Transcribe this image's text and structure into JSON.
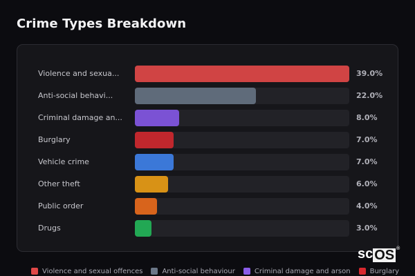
{
  "header": {
    "title": "Crime Types Breakdown"
  },
  "watermark": {
    "prefix": "sc",
    "highlight": "OS",
    "reg": "®"
  },
  "chart_data": {
    "type": "bar",
    "orientation": "horizontal",
    "title": "Crime Types Breakdown",
    "categories": [
      "Violence and sexual offences",
      "Anti-social behaviour",
      "Criminal damage and arson",
      "Burglary",
      "Vehicle crime",
      "Other theft",
      "Public order",
      "Drugs"
    ],
    "display_labels": [
      "Violence and sexua...",
      "Anti-social behavi...",
      "Criminal damage an...",
      "Burglary",
      "Vehicle crime",
      "Other theft",
      "Public order",
      "Drugs"
    ],
    "values": [
      39.0,
      22.0,
      8.0,
      7.0,
      7.0,
      6.0,
      4.0,
      3.0
    ],
    "value_labels": [
      "39.0%",
      "22.0%",
      "8.0%",
      "7.0%",
      "7.0%",
      "6.0%",
      "4.0%",
      "3.0%"
    ],
    "colors": [
      "#d04444",
      "#5f6b7a",
      "#7b52d4",
      "#c0272d",
      "#3b78d8",
      "#d89216",
      "#d8641c",
      "#22a854"
    ],
    "xlabel": "",
    "ylabel": "",
    "scale_max": 39.0,
    "grid": false,
    "legend": {
      "position": "bottom",
      "entries": [
        {
          "label": "Violence and sexual offences",
          "color": "#e04848"
        },
        {
          "label": "Anti-social behaviour",
          "color": "#6b7788"
        },
        {
          "label": "Criminal damage and arson",
          "color": "#8a5ce8"
        },
        {
          "label": "Burglary",
          "color": "#d8282e"
        }
      ]
    }
  }
}
